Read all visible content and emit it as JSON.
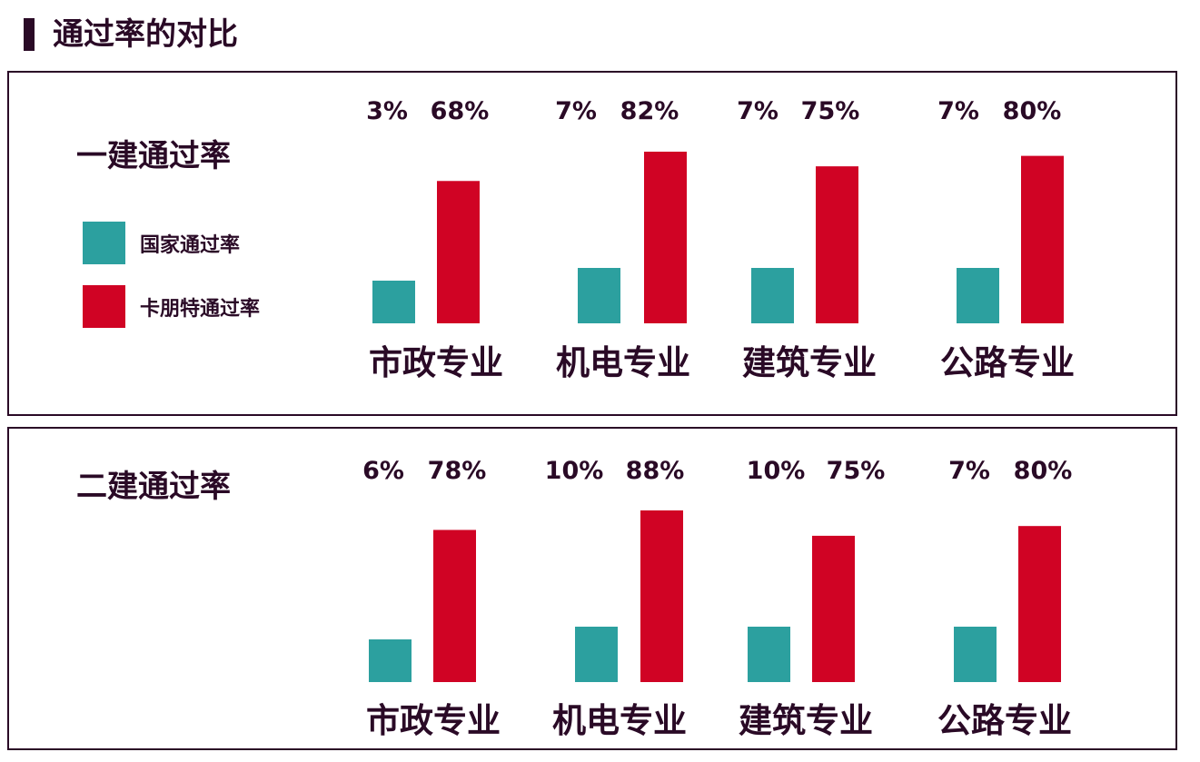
{
  "page": {
    "title": "通过率的对比"
  },
  "legend": [
    {
      "label": "国家通过率",
      "color": "#2ca09f"
    },
    {
      "label": "卡朋特通过率",
      "color": "#d00324"
    }
  ],
  "chart_data": [
    {
      "type": "bar",
      "title": "一建通过率",
      "categories": [
        "市政专业",
        "机电专业",
        "建筑专业",
        "公路专业"
      ],
      "series": [
        {
          "name": "国家通过率",
          "values": [
            3,
            7,
            7,
            7
          ]
        },
        {
          "name": "卡朋特通过率",
          "values": [
            68,
            82,
            75,
            80
          ]
        }
      ],
      "value_labels": {
        "national": [
          "3%",
          "7%",
          "7%",
          "7%"
        ],
        "carpenter": [
          "68%",
          "82%",
          "75%",
          "80%"
        ]
      }
    },
    {
      "type": "bar",
      "title": "二建通过率",
      "categories": [
        "市政专业",
        "机电专业",
        "建筑专业",
        "公路专业"
      ],
      "series": [
        {
          "name": "国家通过率",
          "values": [
            6,
            10,
            10,
            7
          ]
        },
        {
          "name": "卡朋特通过率",
          "values": [
            78,
            88,
            75,
            80
          ]
        }
      ],
      "value_labels": {
        "national": [
          "6%",
          "10%",
          "10%",
          "7%"
        ],
        "carpenter": [
          "78%",
          "88%",
          "75%",
          "80%"
        ]
      }
    }
  ]
}
